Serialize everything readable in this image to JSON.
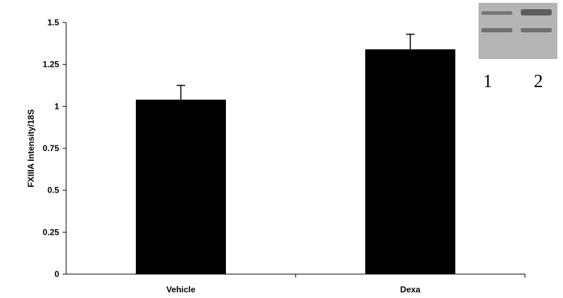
{
  "chart_data": {
    "type": "bar",
    "categories": [
      "Vehicle",
      "Dexa"
    ],
    "values": [
      1.04,
      1.34
    ],
    "error": [
      0.085,
      0.09
    ],
    "ylabel": "FXIIIA Intensity/18S",
    "xlabel": "",
    "ylim": [
      0,
      1.5
    ],
    "yticks": [
      "0",
      "0.25",
      "0.5",
      "0.75",
      "1",
      "1.25",
      "1.5"
    ],
    "ytick_values": [
      0,
      0.25,
      0.5,
      0.75,
      1,
      1.25,
      1.5
    ],
    "bar_color": "#000000",
    "grid": false,
    "legend": "none"
  },
  "inset": {
    "lane_labels": [
      "1",
      "2"
    ],
    "background_color": "#b4b4b4",
    "band_color": "#5a5a5a"
  }
}
